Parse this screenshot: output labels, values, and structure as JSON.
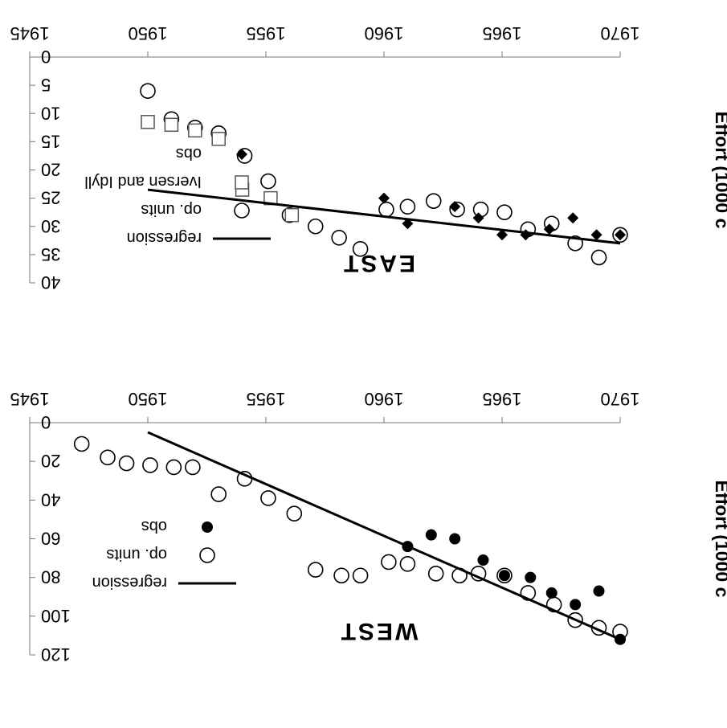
{
  "chart_data": [
    {
      "type": "scatter",
      "title": "WEST",
      "xlabel": "",
      "ylabel": "Effort (1000 c",
      "xlim": [
        1945,
        1970
      ],
      "ylim": [
        0,
        120
      ],
      "y_inverted": true,
      "x_ticks": [
        "1945",
        "1950",
        "1955",
        "1960",
        "1965",
        "1970"
      ],
      "y_ticks": [
        "0",
        "20",
        "40",
        "60",
        "80",
        "100",
        "120"
      ],
      "legend_position": "bottom-left",
      "legend": [
        "regression",
        "op. units",
        "obs"
      ],
      "series": [
        {
          "name": "op. units",
          "marker": "open-circle",
          "x": [
            1947.2,
            1948.3,
            1949.1,
            1950.1,
            1951.1,
            1951.9,
            1953,
            1954.1,
            1955.1,
            1956.2,
            1957.1,
            1958.2,
            1959,
            1960.2,
            1961,
            1962.2,
            1963.2,
            1964,
            1965.1,
            1966.1,
            1967.2,
            1968.1,
            1969.1,
            1970
          ],
          "y": [
            11,
            18,
            21,
            22,
            23,
            23,
            37,
            29,
            39,
            47,
            76,
            79,
            79,
            72,
            73,
            78,
            79,
            78,
            79,
            88,
            94,
            102,
            106,
            108
          ]
        },
        {
          "name": "obs",
          "marker": "filled-circle",
          "x": [
            1961,
            1962,
            1963,
            1964.2,
            1965.1,
            1966.2,
            1967.1,
            1968.1,
            1969.1,
            1970
          ],
          "y": [
            64,
            58,
            60,
            71,
            79,
            80,
            88,
            94,
            87,
            112
          ]
        },
        {
          "name": "regression",
          "marker": "line",
          "x": [
            1950,
            1970
          ],
          "y": [
            5,
            112
          ]
        }
      ]
    },
    {
      "type": "scatter",
      "title": "EAST",
      "xlabel": "",
      "ylabel": "Effort (1000 c",
      "xlim": [
        1945,
        1970
      ],
      "ylim": [
        0,
        40
      ],
      "y_inverted": true,
      "x_ticks": [
        "1945",
        "1950",
        "1955",
        "1960",
        "1965",
        "1970"
      ],
      "y_ticks": [
        "0",
        "5",
        "10",
        "15",
        "20",
        "25",
        "30",
        "35",
        "40"
      ],
      "legend_position": "bottom-left",
      "legend": [
        "regression",
        "op. units",
        "Iversen and Idyll",
        "obs"
      ],
      "series": [
        {
          "name": "op. units",
          "marker": "open-circle",
          "x": [
            1950,
            1951,
            1952,
            1953,
            1954.1,
            1955.1,
            1956,
            1957.1,
            1958.1,
            1959,
            1960.1,
            1961,
            1962.1,
            1963.1,
            1964.1,
            1965.1,
            1966.1,
            1967.1,
            1968.1,
            1969.1,
            1970
          ],
          "y": [
            6,
            11,
            12.5,
            13.5,
            17.5,
            22,
            28,
            30,
            32,
            34,
            27,
            26.5,
            25.5,
            27,
            27,
            27.5,
            30.5,
            29.5,
            33,
            35.5,
            31.5
          ]
        },
        {
          "name": "Iversen and Idyll",
          "marker": "open-square",
          "x": [
            1950,
            1951,
            1952,
            1953,
            1954,
            1955.2,
            1956.1
          ],
          "y": [
            11.5,
            12,
            13,
            14.5,
            23.5,
            25,
            28
          ]
        },
        {
          "name": "obs",
          "marker": "filled-diamond",
          "x": [
            1960,
            1961,
            1963,
            1964,
            1965,
            1966,
            1967,
            1968,
            1969,
            1970
          ],
          "y": [
            25,
            29.5,
            26.5,
            28.5,
            31.5,
            31.5,
            30.5,
            28.5,
            31.5,
            31.5
          ]
        },
        {
          "name": "regression",
          "marker": "line",
          "x": [
            1950,
            1970
          ],
          "y": [
            23.5,
            33
          ]
        }
      ]
    }
  ]
}
